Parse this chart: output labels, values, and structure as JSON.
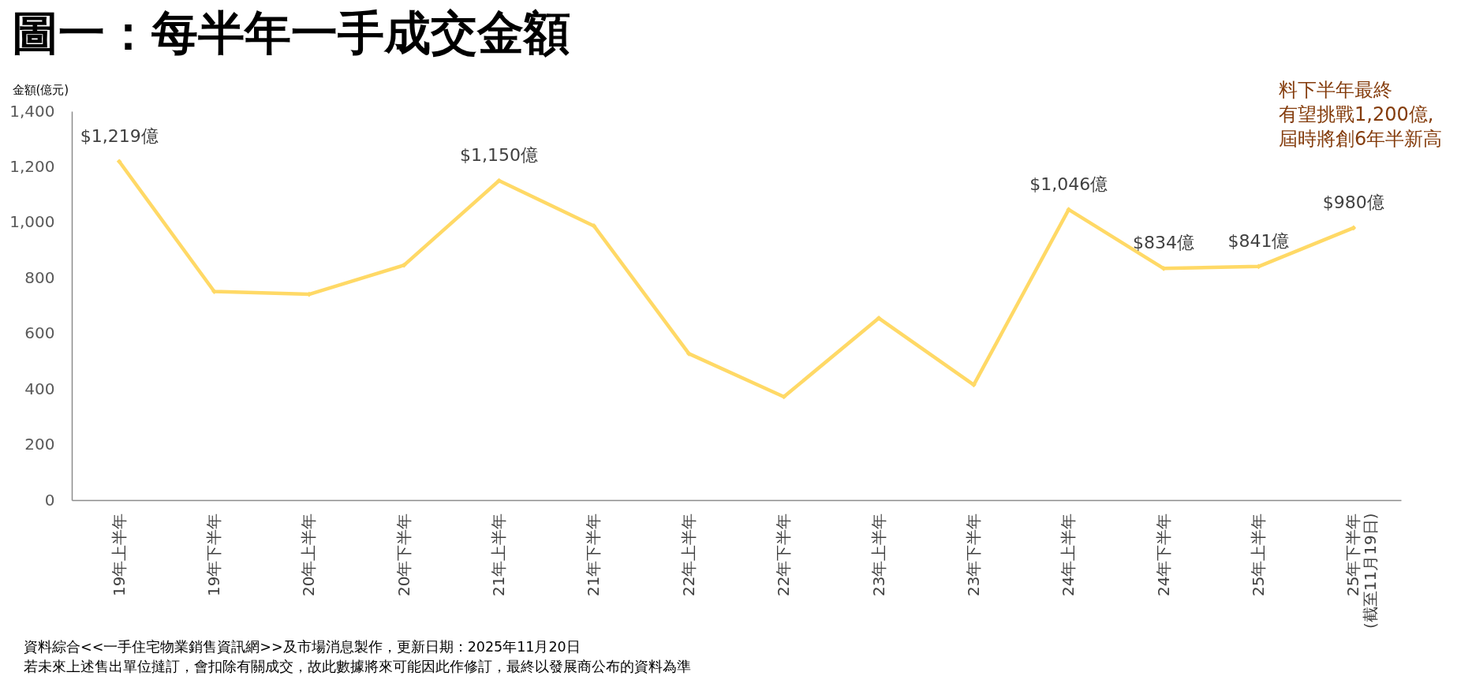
{
  "chart_data": {
    "type": "line",
    "title": "圖一：每半年一手成交金額",
    "ylabel": "金額(億元)",
    "categories": [
      "19年上半年",
      "19年下半年",
      "20年上半年",
      "20年下半年",
      "21年上半年",
      "21年下半年",
      "22年上半年",
      "22年下半年",
      "23年上半年",
      "23年下半年",
      "24年上半年",
      "24年下半年",
      "25年上半年",
      "25年下半年\n(截至11月19日)"
    ],
    "series": [
      {
        "color": "#ffd966",
        "values": [
          1219,
          751,
          741,
          846,
          1150,
          987,
          527,
          372,
          655,
          415,
          1046,
          834,
          841,
          980
        ],
        "value_labels": [
          "$1,219億",
          null,
          null,
          null,
          "$1,150億",
          null,
          null,
          null,
          null,
          null,
          "$1,046億",
          "$834億",
          "$841億",
          "$980億"
        ]
      }
    ],
    "ylim": [
      0,
      1400
    ],
    "yticks": [
      0,
      200,
      400,
      600,
      800,
      {
        "value": 1000,
        "label": "1,000"
      },
      {
        "value": 1200,
        "label": "1,200"
      },
      {
        "value": 1400,
        "label": "1,400"
      }
    ],
    "grid": false,
    "marker": "diamond",
    "line_style": "solid",
    "annotations": [
      "料下半年最終",
      "有望挑戰1,200億,",
      "屆時將創6年半新高",
      "資料綜合<<一手住宅物業銷售資訊網>>及市場消息製作，更新日期：2025年11月20日",
      "若未來上述售出單位撻訂，會扣除有關成交，故此數據將來可能因此作修訂，最終以發展商公布的資料為準"
    ]
  }
}
